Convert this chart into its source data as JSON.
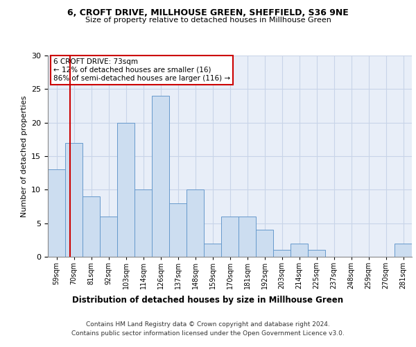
{
  "title1": "6, CROFT DRIVE, MILLHOUSE GREEN, SHEFFIELD, S36 9NE",
  "title2": "Size of property relative to detached houses in Millhouse Green",
  "xlabel": "Distribution of detached houses by size in Millhouse Green",
  "ylabel": "Number of detached properties",
  "categories": [
    "59sqm",
    "70sqm",
    "81sqm",
    "92sqm",
    "103sqm",
    "114sqm",
    "126sqm",
    "137sqm",
    "148sqm",
    "159sqm",
    "170sqm",
    "181sqm",
    "192sqm",
    "203sqm",
    "214sqm",
    "225sqm",
    "237sqm",
    "248sqm",
    "259sqm",
    "270sqm",
    "281sqm"
  ],
  "values": [
    13,
    17,
    9,
    6,
    20,
    10,
    24,
    8,
    10,
    2,
    6,
    6,
    4,
    1,
    2,
    1,
    0,
    0,
    0,
    0,
    2
  ],
  "bar_color": "#ccddf0",
  "bar_edge_color": "#6699cc",
  "annotation_text": "6 CROFT DRIVE: 73sqm\n← 12% of detached houses are smaller (16)\n86% of semi-detached houses are larger (116) →",
  "vline_color": "#cc0000",
  "ylim": [
    0,
    30
  ],
  "yticks": [
    0,
    5,
    10,
    15,
    20,
    25,
    30
  ],
  "grid_color": "#c8d4e8",
  "background_color": "#e8eef8",
  "footer1": "Contains HM Land Registry data © Crown copyright and database right 2024.",
  "footer2": "Contains public sector information licensed under the Open Government Licence v3.0."
}
